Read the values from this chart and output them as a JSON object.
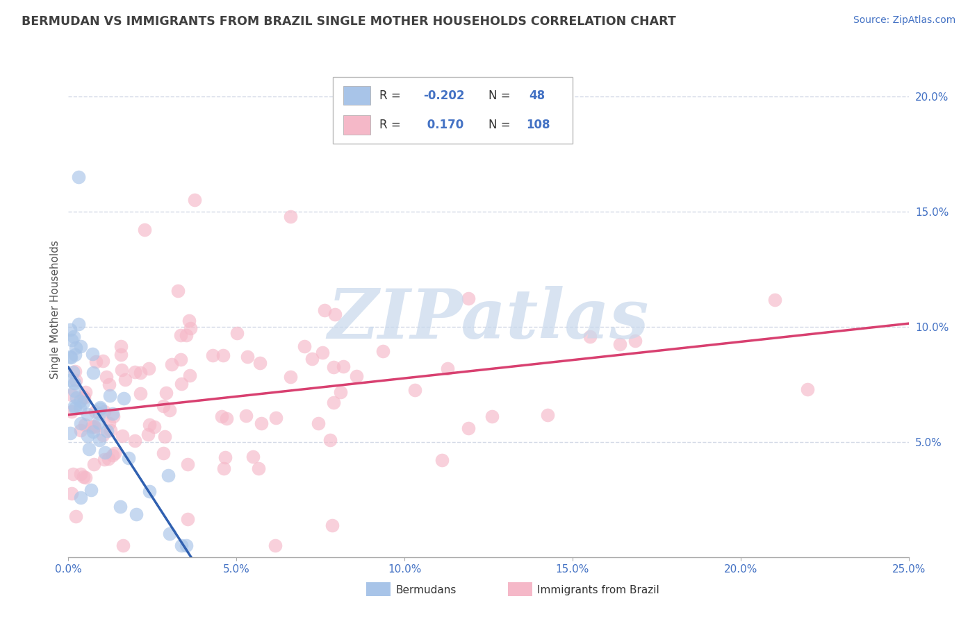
{
  "title": "BERMUDAN VS IMMIGRANTS FROM BRAZIL SINGLE MOTHER HOUSEHOLDS CORRELATION CHART",
  "source": "Source: ZipAtlas.com",
  "ylabel": "Single Mother Households",
  "xlim": [
    0.0,
    0.25
  ],
  "ylim": [
    0.0,
    0.215
  ],
  "xticks": [
    0.0,
    0.05,
    0.1,
    0.15,
    0.2,
    0.25
  ],
  "xticklabels": [
    "0.0%",
    "5.0%",
    "10.0%",
    "15.0%",
    "20.0%",
    "25.0%"
  ],
  "yticks_right": [
    0.05,
    0.1,
    0.15,
    0.2
  ],
  "yticklabels_right": [
    "5.0%",
    "10.0%",
    "15.0%",
    "20.0%"
  ],
  "group1_name": "Bermudans",
  "group2_name": "Immigrants from Brazil",
  "group1_scatter_color": "#a8c4e8",
  "group2_scatter_color": "#f5b8c8",
  "trend1_color": "#3060b0",
  "trend2_color": "#d84070",
  "watermark_text": "ZIPatlas",
  "watermark_color": "#c8d8ec",
  "background_color": "#ffffff",
  "grid_color": "#c8d0e0",
  "title_color": "#404040",
  "axis_label_color": "#4472c4",
  "legend_text_color": "#4472c4",
  "legend_label_color": "#333333",
  "source_color": "#4472c4",
  "R1": -0.202,
  "N1": 48,
  "R2": 0.17,
  "N2": 108,
  "seed1": 42,
  "seed2": 99
}
